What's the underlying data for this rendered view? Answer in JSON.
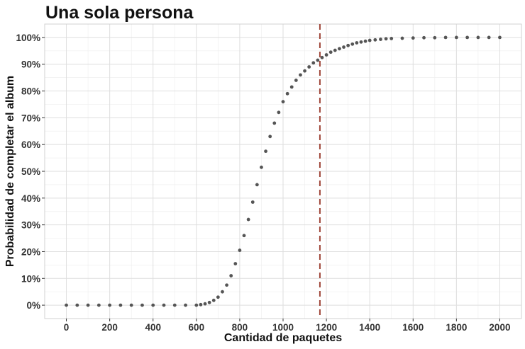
{
  "chart_data": {
    "type": "scatter",
    "title": "Una sola persona",
    "xlabel": "Cantidad de paquetes",
    "ylabel": "Probabilidad de completar el album",
    "xlim": [
      -100,
      2100
    ],
    "ylim": [
      -0.05,
      1.05
    ],
    "x_ticks": [
      0,
      200,
      400,
      600,
      800,
      1000,
      1200,
      1400,
      1600,
      1800,
      2000
    ],
    "x_tick_labels": [
      "0",
      "200",
      "400",
      "600",
      "800",
      "1000",
      "1200",
      "1400",
      "1600",
      "1800",
      "2000"
    ],
    "y_ticks": [
      0,
      0.1,
      0.2,
      0.3,
      0.4,
      0.5,
      0.6,
      0.7,
      0.8,
      0.9,
      1.0
    ],
    "y_tick_labels": [
      "0%",
      "10%",
      "20%",
      "30%",
      "40%",
      "50%",
      "60%",
      "70%",
      "80%",
      "90%",
      "100%"
    ],
    "grid": true,
    "point_color": "#555555",
    "reference_line": {
      "orientation": "vertical",
      "x": 1170,
      "style": "dashed",
      "color": "#a0473a"
    },
    "series": [
      {
        "x": [
          0,
          50,
          100,
          150,
          200,
          250,
          300,
          350,
          400,
          450,
          500,
          550,
          600,
          620,
          640,
          660,
          680,
          700,
          720,
          740,
          760,
          780,
          800,
          820,
          840,
          860,
          880,
          900,
          920,
          940,
          960,
          980,
          1000,
          1020,
          1040,
          1060,
          1080,
          1100,
          1120,
          1140,
          1160,
          1180,
          1200,
          1220,
          1240,
          1260,
          1280,
          1300,
          1320,
          1340,
          1360,
          1380,
          1400,
          1425,
          1450,
          1475,
          1500,
          1550,
          1600,
          1650,
          1700,
          1750,
          1800,
          1850,
          1900,
          1950,
          2000
        ],
        "y": [
          0,
          0,
          0,
          0,
          0,
          0,
          0,
          0,
          0,
          0,
          0,
          0,
          0,
          0.002,
          0.005,
          0.01,
          0.018,
          0.03,
          0.05,
          0.075,
          0.11,
          0.155,
          0.205,
          0.26,
          0.32,
          0.385,
          0.45,
          0.515,
          0.575,
          0.63,
          0.68,
          0.72,
          0.76,
          0.79,
          0.815,
          0.84,
          0.86,
          0.875,
          0.89,
          0.905,
          0.915,
          0.925,
          0.935,
          0.945,
          0.952,
          0.958,
          0.964,
          0.97,
          0.975,
          0.98,
          0.983,
          0.986,
          0.989,
          0.991,
          0.993,
          0.995,
          0.996,
          0.997,
          0.998,
          0.999,
          0.999,
          1,
          1,
          1,
          1,
          1,
          1
        ]
      }
    ]
  }
}
